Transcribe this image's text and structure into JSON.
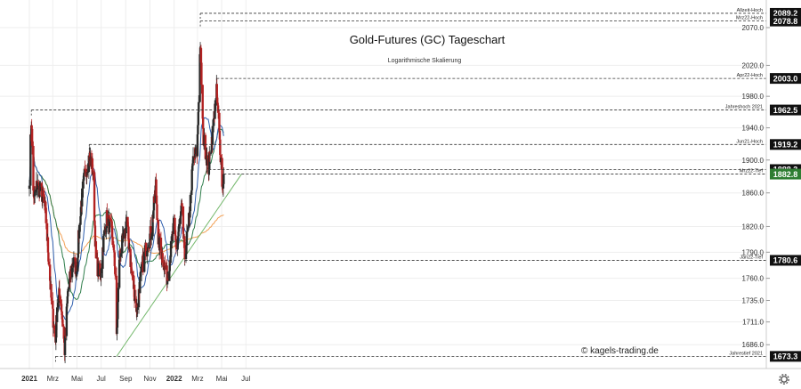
{
  "chart_data": {
    "type": "candlestick",
    "title": "Gold-Futures (GC) Tageschart",
    "subtitle": "Logarithmische Skalierung",
    "watermark": "© kagels-trading.de",
    "scale": "log",
    "ylim": [
      1665,
      2100
    ],
    "y_ticks": [
      1686.0,
      1711.0,
      1735.0,
      1760.0,
      1790.0,
      1820.0,
      1860.0,
      1900.0,
      1940.0,
      1980.0,
      2020.0,
      2070.0
    ],
    "x_ticks": [
      "2021",
      "Mrz",
      "Mai",
      "Jul",
      "Sep",
      "Nov",
      "2022",
      "Mrz",
      "Mai",
      "Jul"
    ],
    "x_tick_dates": [
      "2021-01-01",
      "2021-03-01",
      "2021-05-01",
      "2021-07-01",
      "2021-09-01",
      "2021-11-01",
      "2022-01-01",
      "2022-03-01",
      "2022-05-01",
      "2022-07-01"
    ],
    "x_range": [
      "2021-01-01",
      "2022-08-15"
    ],
    "grid": true,
    "colors": {
      "up": "#2a2a2a",
      "down": "#b22222",
      "ma_fast": "#2f5fae",
      "ma_mid": "#2e7d4a",
      "ma_slow": "#f2a054",
      "trendline": "#74b86c",
      "level_box": "#111111",
      "current_box": "#2e7d32"
    },
    "price_path": [
      [
        "2021-01-01",
        1880
      ],
      [
        "2021-01-06",
        1950
      ],
      [
        "2021-01-12",
        1850
      ],
      [
        "2021-01-20",
        1870
      ],
      [
        "2021-02-01",
        1860
      ],
      [
        "2021-02-10",
        1840
      ],
      [
        "2021-02-19",
        1780
      ],
      [
        "2021-02-26",
        1730
      ],
      [
        "2021-03-08",
        1690
      ],
      [
        "2021-03-12",
        1730
      ],
      [
        "2021-03-20",
        1745
      ],
      [
        "2021-03-31",
        1680
      ],
      [
        "2021-04-08",
        1745
      ],
      [
        "2021-04-21",
        1780
      ],
      [
        "2021-04-30",
        1770
      ],
      [
        "2021-05-10",
        1840
      ],
      [
        "2021-05-20",
        1880
      ],
      [
        "2021-06-01",
        1905
      ],
      [
        "2021-06-10",
        1890
      ],
      [
        "2021-06-18",
        1780
      ],
      [
        "2021-06-29",
        1760
      ],
      [
        "2021-07-06",
        1800
      ],
      [
        "2021-07-15",
        1830
      ],
      [
        "2021-07-28",
        1815
      ],
      [
        "2021-08-06",
        1765
      ],
      [
        "2021-08-09",
        1690
      ],
      [
        "2021-08-16",
        1785
      ],
      [
        "2021-08-31",
        1815
      ],
      [
        "2021-09-03",
        1830
      ],
      [
        "2021-09-15",
        1770
      ],
      [
        "2021-09-29",
        1725
      ],
      [
        "2021-10-08",
        1760
      ],
      [
        "2021-10-22",
        1795
      ],
      [
        "2021-11-05",
        1815
      ],
      [
        "2021-11-16",
        1870
      ],
      [
        "2021-11-22",
        1805
      ],
      [
        "2021-12-03",
        1785
      ],
      [
        "2021-12-15",
        1760
      ],
      [
        "2021-12-31",
        1820
      ],
      [
        "2022-01-07",
        1795
      ],
      [
        "2022-01-20",
        1840
      ],
      [
        "2022-01-28",
        1785
      ],
      [
        "2022-02-08",
        1830
      ],
      [
        "2022-02-18",
        1900
      ],
      [
        "2022-02-28",
        1910
      ],
      [
        "2022-03-08",
        2050
      ],
      [
        "2022-03-15",
        1930
      ],
      [
        "2022-03-29",
        1890
      ],
      [
        "2022-04-07",
        1930
      ],
      [
        "2022-04-18",
        1985
      ],
      [
        "2022-04-29",
        1900
      ],
      [
        "2022-05-03",
        1865
      ],
      [
        "2022-05-06",
        1882.8
      ]
    ],
    "levels": [
      {
        "value": 2089.2,
        "label": "Allzeit-Hoch",
        "start": "2022-03-08"
      },
      {
        "value": 2078.8,
        "label": "Mrz22-Hoch",
        "start": "2022-03-08"
      },
      {
        "value": 2003.0,
        "label": "Apr22-Hoch",
        "start": "2022-04-18"
      },
      {
        "value": 1962.5,
        "label": "Jahreshoch 2021",
        "start": "2021-01-06"
      },
      {
        "value": 1919.2,
        "label": "Jun21-Hoch",
        "start": "2021-06-01"
      },
      {
        "value": 1888.3,
        "label": "",
        "start": "2022-03-29"
      },
      {
        "value": 1882.8,
        "label": "Mrz22-Tief",
        "start": "2022-05-06",
        "current": true
      },
      {
        "value": 1780.6,
        "label": "Jan22-Tief",
        "start": "2022-01-28"
      },
      {
        "value": 1673.3,
        "label": "Jahrestief 2021",
        "start": "2021-03-08"
      }
    ],
    "trendline": {
      "from": [
        "2021-08-09",
        1673.3
      ],
      "to": [
        "2022-06-20",
        1882.8
      ]
    }
  }
}
